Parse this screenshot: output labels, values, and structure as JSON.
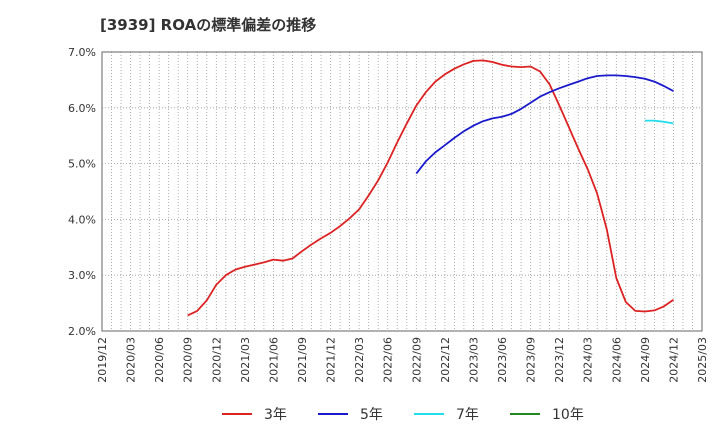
{
  "chart_data": {
    "type": "line",
    "title": "[3939]  ROAの標準偏差の推移",
    "xlabel": "",
    "ylabel": "",
    "ylim": [
      2.0,
      7.0
    ],
    "y_ticks": [
      "2.0%",
      "3.0%",
      "4.0%",
      "5.0%",
      "6.0%",
      "7.0%"
    ],
    "x_ticks": [
      "2019/12",
      "2020/03",
      "2020/06",
      "2020/09",
      "2020/12",
      "2021/03",
      "2021/06",
      "2021/09",
      "2021/12",
      "2022/03",
      "2022/06",
      "2022/09",
      "2022/12",
      "2023/03",
      "2023/06",
      "2023/09",
      "2023/12",
      "2024/03",
      "2024/06",
      "2024/09",
      "2024/12",
      "2025/03"
    ],
    "grid": true,
    "legend_position": "bottom",
    "series": [
      {
        "name": "3年",
        "color": "#dd2222",
        "x": [
          "2020/09",
          "2020/10",
          "2020/11",
          "2020/12",
          "2021/01",
          "2021/02",
          "2021/03",
          "2021/04",
          "2021/05",
          "2021/06",
          "2021/07",
          "2021/08",
          "2021/09",
          "2021/10",
          "2021/11",
          "2021/12",
          "2022/01",
          "2022/02",
          "2022/03",
          "2022/04",
          "2022/05",
          "2022/06",
          "2022/07",
          "2022/08",
          "2022/09",
          "2022/10",
          "2022/11",
          "2022/12",
          "2023/01",
          "2023/02",
          "2023/03",
          "2023/04",
          "2023/05",
          "2023/06",
          "2023/07",
          "2023/08",
          "2023/09",
          "2023/10",
          "2023/11",
          "2023/12",
          "2024/01",
          "2024/02",
          "2024/03",
          "2024/04",
          "2024/05",
          "2024/06",
          "2024/07",
          "2024/08",
          "2024/09",
          "2024/10",
          "2024/11",
          "2024/12"
        ],
        "values": [
          2.28,
          2.36,
          2.55,
          2.83,
          3.0,
          3.1,
          3.15,
          3.19,
          3.23,
          3.28,
          3.26,
          3.3,
          3.43,
          3.55,
          3.66,
          3.76,
          3.88,
          4.02,
          4.18,
          4.43,
          4.7,
          5.02,
          5.38,
          5.72,
          6.04,
          6.28,
          6.47,
          6.6,
          6.7,
          6.78,
          6.84,
          6.85,
          6.82,
          6.77,
          6.74,
          6.73,
          6.74,
          6.65,
          6.42,
          6.05,
          5.66,
          5.27,
          4.9,
          4.46,
          3.82,
          2.95,
          2.52,
          2.36,
          2.35,
          2.37,
          2.44,
          2.56
        ]
      },
      {
        "name": "5年",
        "color": "#1a1acc",
        "x": [
          "2022/09",
          "2022/10",
          "2022/11",
          "2022/12",
          "2023/01",
          "2023/02",
          "2023/03",
          "2023/04",
          "2023/05",
          "2023/06",
          "2023/07",
          "2023/08",
          "2023/09",
          "2023/10",
          "2023/11",
          "2023/12",
          "2024/01",
          "2024/02",
          "2024/03",
          "2024/04",
          "2024/05",
          "2024/06",
          "2024/07",
          "2024/08",
          "2024/09",
          "2024/10",
          "2024/11",
          "2024/12"
        ],
        "values": [
          4.82,
          5.04,
          5.2,
          5.33,
          5.46,
          5.58,
          5.68,
          5.76,
          5.81,
          5.84,
          5.89,
          5.98,
          6.09,
          6.2,
          6.28,
          6.35,
          6.41,
          6.47,
          6.53,
          6.57,
          6.58,
          6.58,
          6.57,
          6.55,
          6.52,
          6.47,
          6.39,
          6.3
        ]
      },
      {
        "name": "7年",
        "color": "#22ddee",
        "x": [
          "2024/09",
          "2024/10",
          "2024/11",
          "2024/12"
        ],
        "values": [
          5.77,
          5.77,
          5.75,
          5.72
        ]
      },
      {
        "name": "10年",
        "color": "#228822",
        "x": [],
        "values": []
      }
    ]
  }
}
